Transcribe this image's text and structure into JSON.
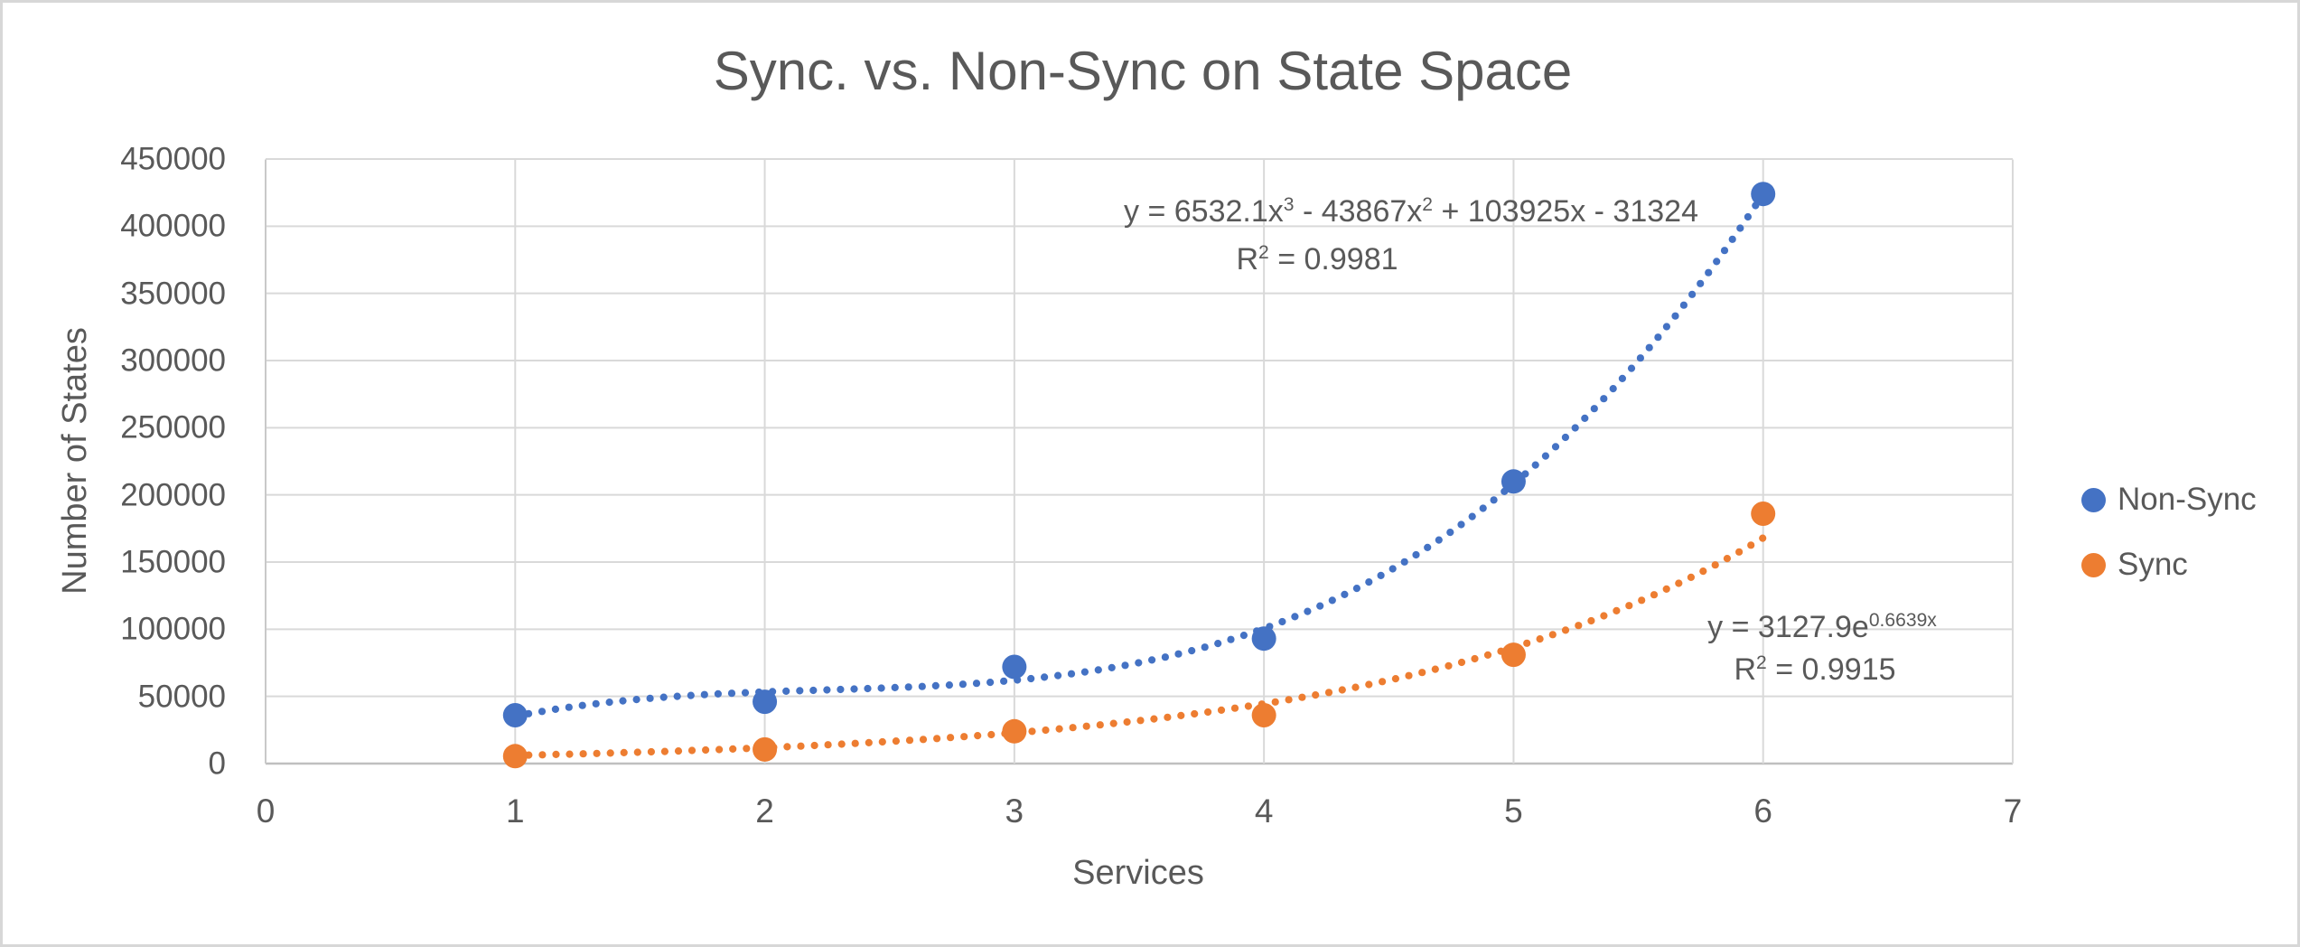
{
  "title": "Sync. vs. Non-Sync on State Space",
  "colors": {
    "series_nonsync": "#4472C4",
    "series_sync": "#ED7D31",
    "text": "#595959",
    "gridline": "#D9D9D9",
    "axis_line": "#BFBFBF",
    "chart_border": "#D7D7D7",
    "background": "#FFFFFF"
  },
  "legend": {
    "position": "right",
    "items": [
      {
        "label": "Non-Sync",
        "color": "#4472C4"
      },
      {
        "label": "Sync",
        "color": "#ED7D31"
      }
    ]
  },
  "chart_data": {
    "type": "scatter",
    "title": "Sync. vs. Non-Sync on State Space",
    "xlabel": "Services",
    "ylabel": "Number of States",
    "xlim": [
      0,
      7
    ],
    "ylim": [
      0,
      450000
    ],
    "x_ticks": [
      0,
      1,
      2,
      3,
      4,
      5,
      6,
      7
    ],
    "y_ticks": [
      0,
      50000,
      100000,
      150000,
      200000,
      250000,
      300000,
      350000,
      400000,
      450000
    ],
    "grid": true,
    "legend_position": "right",
    "x": [
      1,
      2,
      3,
      4,
      5,
      6
    ],
    "series": [
      {
        "name": "Non-Sync",
        "color": "#4472C4",
        "marker": "circle",
        "values": [
          36000,
          46000,
          72000,
          93000,
          210000,
          424000
        ],
        "trendline": {
          "type": "polynomial",
          "order": 3,
          "coefficients": [
            6532.1,
            -43867,
            103925,
            -31324
          ],
          "r_squared": 0.9981,
          "line_style": "dotted",
          "equation_parts": [
            {
              "t": "y = 6532.1x"
            },
            {
              "t": "3",
              "sup": true
            },
            {
              "t": " - 43867x"
            },
            {
              "t": "2",
              "sup": true
            },
            {
              "t": " + 103925x - 31324"
            }
          ],
          "r2_parts": [
            {
              "t": "R"
            },
            {
              "t": "2",
              "sup": true
            },
            {
              "t": " = 0.9981"
            }
          ]
        }
      },
      {
        "name": "Sync",
        "color": "#ED7D31",
        "marker": "circle",
        "values": [
          5500,
          10500,
          24000,
          36000,
          81000,
          186000
        ],
        "trendline": {
          "type": "exponential",
          "coefficient": 3127.9,
          "exponent": 0.6639,
          "r_squared": 0.9915,
          "line_style": "dotted",
          "equation_parts": [
            {
              "t": "y = 3127.9e"
            },
            {
              "t": "0.6639x",
              "sup": true
            }
          ],
          "r2_parts": [
            {
              "t": "R"
            },
            {
              "t": "2",
              "sup": true
            },
            {
              "t": " = 0.9915"
            }
          ]
        }
      }
    ]
  }
}
